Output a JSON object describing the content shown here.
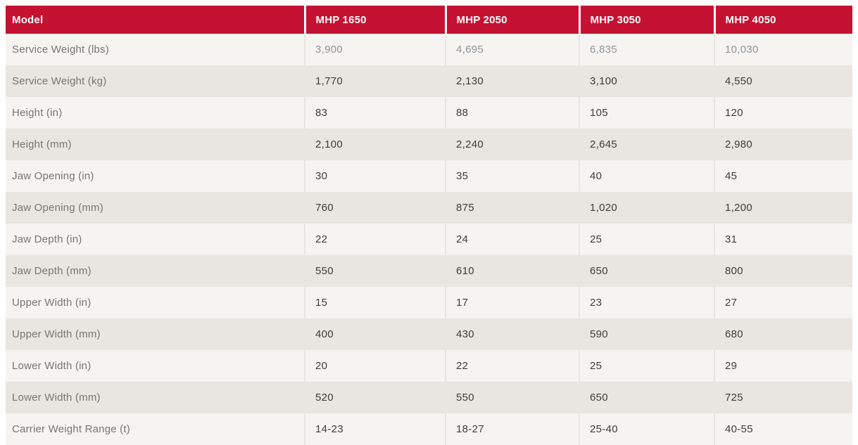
{
  "table": {
    "header": {
      "model_label": "Model",
      "columns": [
        "MHP 1650",
        "MHP 2050",
        "MHP 3050",
        "MHP 4050"
      ]
    },
    "rows": [
      {
        "label": "Service Weight (lbs)",
        "values": [
          "3,900",
          "4,695",
          "6,835",
          "10,030"
        ],
        "muted": true
      },
      {
        "label": "Service Weight (kg)",
        "values": [
          "1,770",
          "2,130",
          "3,100",
          "4,550"
        ]
      },
      {
        "label": "Height (in)",
        "values": [
          "83",
          "88",
          "105",
          "120"
        ]
      },
      {
        "label": "Height (mm)",
        "values": [
          "2,100",
          "2,240",
          "2,645",
          "2,980"
        ]
      },
      {
        "label": "Jaw Opening (in)",
        "values": [
          "30",
          "35",
          "40",
          "45"
        ]
      },
      {
        "label": "Jaw Opening (mm)",
        "values": [
          "760",
          "875",
          "1,020",
          "1,200"
        ]
      },
      {
        "label": "Jaw Depth (in)",
        "values": [
          "22",
          "24",
          "25",
          "31"
        ]
      },
      {
        "label": "Jaw Depth (mm)",
        "values": [
          "550",
          "610",
          "650",
          "800"
        ]
      },
      {
        "label": "Upper Width (in)",
        "values": [
          "15",
          "17",
          "23",
          "27"
        ]
      },
      {
        "label": "Upper Width (mm)",
        "values": [
          "400",
          "430",
          "590",
          "680"
        ]
      },
      {
        "label": "Lower Width (in)",
        "values": [
          "20",
          "22",
          "25",
          "29"
        ]
      },
      {
        "label": "Lower Width (mm)",
        "values": [
          "520",
          "550",
          "650",
          "725"
        ]
      },
      {
        "label": "Carrier Weight Range (t)",
        "values": [
          "14-23",
          "18-27",
          "25-40",
          "40-55"
        ]
      }
    ],
    "colors": {
      "header_bg": "#c51232",
      "header_text": "#ffffff",
      "row_light": "#f5f4f1",
      "row_dark": "#e9e5e0",
      "label_text": "#7b756e",
      "value_text": "#3d3d3c",
      "muted_value_text": "#8f9497"
    }
  }
}
